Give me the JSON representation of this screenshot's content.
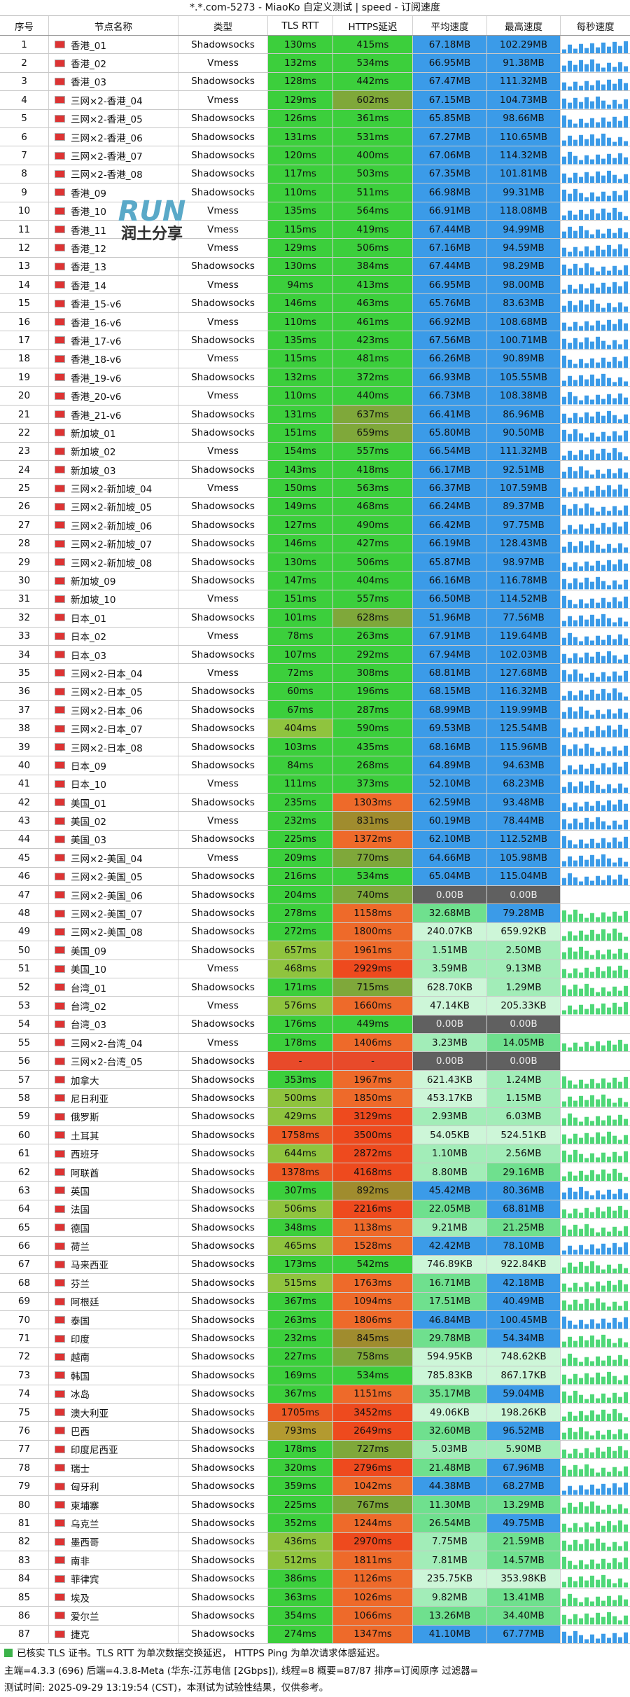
{
  "title": "*.*.com-5273 - MiaoKo 自定义测试 | speed - 订阅速度",
  "table": {
    "headers": [
      "序号",
      "节点名称",
      "类型",
      "TLS RTT",
      "HTTPS延迟",
      "平均速度",
      "最高速度",
      "每秒速度"
    ],
    "rows": [
      [
        "1",
        "香港_01",
        "Shadowsocks",
        "130ms",
        "415ms",
        "67.18MB",
        "102.29MB"
      ],
      [
        "2",
        "香港_02",
        "Vmess",
        "132ms",
        "534ms",
        "66.95MB",
        "91.38MB"
      ],
      [
        "3",
        "香港_03",
        "Shadowsocks",
        "128ms",
        "442ms",
        "67.47MB",
        "111.32MB"
      ],
      [
        "4",
        "三网×2-香港_04",
        "Vmess",
        "129ms",
        "602ms",
        "67.15MB",
        "104.73MB"
      ],
      [
        "5",
        "三网×2-香港_05",
        "Shadowsocks",
        "126ms",
        "361ms",
        "65.85MB",
        "98.66MB"
      ],
      [
        "6",
        "三网×2-香港_06",
        "Shadowsocks",
        "131ms",
        "531ms",
        "67.27MB",
        "110.65MB"
      ],
      [
        "7",
        "三网×2-香港_07",
        "Shadowsocks",
        "120ms",
        "400ms",
        "67.06MB",
        "114.32MB"
      ],
      [
        "8",
        "三网×2-香港_08",
        "Shadowsocks",
        "117ms",
        "503ms",
        "67.35MB",
        "101.81MB"
      ],
      [
        "9",
        "香港_09",
        "Shadowsocks",
        "110ms",
        "511ms",
        "66.98MB",
        "99.31MB"
      ],
      [
        "10",
        "香港_10",
        "Vmess",
        "135ms",
        "564ms",
        "66.91MB",
        "118.08MB"
      ],
      [
        "11",
        "香港_11",
        "Vmess",
        "115ms",
        "419ms",
        "67.44MB",
        "94.99MB"
      ],
      [
        "12",
        "香港_12",
        "Vmess",
        "129ms",
        "506ms",
        "67.16MB",
        "94.59MB"
      ],
      [
        "13",
        "香港_13",
        "Shadowsocks",
        "130ms",
        "384ms",
        "67.44MB",
        "98.29MB"
      ],
      [
        "14",
        "香港_14",
        "Vmess",
        "94ms",
        "413ms",
        "66.95MB",
        "98.00MB"
      ],
      [
        "15",
        "香港_15-v6",
        "Shadowsocks",
        "146ms",
        "463ms",
        "65.76MB",
        "83.63MB"
      ],
      [
        "16",
        "香港_16-v6",
        "Vmess",
        "110ms",
        "461ms",
        "66.92MB",
        "108.68MB"
      ],
      [
        "17",
        "香港_17-v6",
        "Shadowsocks",
        "135ms",
        "423ms",
        "67.56MB",
        "100.71MB"
      ],
      [
        "18",
        "香港_18-v6",
        "Vmess",
        "115ms",
        "481ms",
        "66.26MB",
        "90.89MB"
      ],
      [
        "19",
        "香港_19-v6",
        "Shadowsocks",
        "132ms",
        "372ms",
        "66.93MB",
        "105.55MB"
      ],
      [
        "20",
        "香港_20-v6",
        "Vmess",
        "110ms",
        "440ms",
        "66.73MB",
        "108.38MB"
      ],
      [
        "21",
        "香港_21-v6",
        "Shadowsocks",
        "131ms",
        "637ms",
        "66.41MB",
        "86.96MB"
      ],
      [
        "22",
        "新加坡_01",
        "Shadowsocks",
        "151ms",
        "659ms",
        "65.80MB",
        "90.50MB"
      ],
      [
        "23",
        "新加坡_02",
        "Vmess",
        "154ms",
        "557ms",
        "66.54MB",
        "111.32MB"
      ],
      [
        "24",
        "新加坡_03",
        "Shadowsocks",
        "143ms",
        "418ms",
        "66.17MB",
        "92.51MB"
      ],
      [
        "25",
        "三网×2-新加坡_04",
        "Vmess",
        "150ms",
        "563ms",
        "66.37MB",
        "107.59MB"
      ],
      [
        "26",
        "三网×2-新加坡_05",
        "Shadowsocks",
        "149ms",
        "468ms",
        "66.24MB",
        "89.37MB"
      ],
      [
        "27",
        "三网×2-新加坡_06",
        "Shadowsocks",
        "127ms",
        "490ms",
        "66.42MB",
        "97.75MB"
      ],
      [
        "28",
        "三网×2-新加坡_07",
        "Shadowsocks",
        "146ms",
        "427ms",
        "66.19MB",
        "128.43MB"
      ],
      [
        "29",
        "三网×2-新加坡_08",
        "Shadowsocks",
        "130ms",
        "506ms",
        "65.87MB",
        "98.97MB"
      ],
      [
        "30",
        "新加坡_09",
        "Shadowsocks",
        "147ms",
        "404ms",
        "66.16MB",
        "116.78MB"
      ],
      [
        "31",
        "新加坡_10",
        "Vmess",
        "151ms",
        "557ms",
        "66.50MB",
        "114.52MB"
      ],
      [
        "32",
        "日本_01",
        "Shadowsocks",
        "101ms",
        "628ms",
        "51.96MB",
        "77.56MB"
      ],
      [
        "33",
        "日本_02",
        "Vmess",
        "78ms",
        "263ms",
        "67.91MB",
        "119.64MB"
      ],
      [
        "34",
        "日本_03",
        "Shadowsocks",
        "107ms",
        "292ms",
        "67.94MB",
        "102.03MB"
      ],
      [
        "35",
        "三网×2-日本_04",
        "Vmess",
        "72ms",
        "308ms",
        "68.81MB",
        "127.68MB"
      ],
      [
        "36",
        "三网×2-日本_05",
        "Shadowsocks",
        "60ms",
        "196ms",
        "68.15MB",
        "116.32MB"
      ],
      [
        "37",
        "三网×2-日本_06",
        "Shadowsocks",
        "67ms",
        "287ms",
        "68.99MB",
        "119.99MB"
      ],
      [
        "38",
        "三网×2-日本_07",
        "Shadowsocks",
        "404ms",
        "590ms",
        "69.53MB",
        "125.54MB"
      ],
      [
        "39",
        "三网×2-日本_08",
        "Shadowsocks",
        "103ms",
        "435ms",
        "68.16MB",
        "115.96MB"
      ],
      [
        "40",
        "日本_09",
        "Shadowsocks",
        "84ms",
        "268ms",
        "64.89MB",
        "94.63MB"
      ],
      [
        "41",
        "日本_10",
        "Vmess",
        "111ms",
        "373ms",
        "52.10MB",
        "68.23MB"
      ],
      [
        "42",
        "美国_01",
        "Shadowsocks",
        "235ms",
        "1303ms",
        "62.59MB",
        "93.48MB"
      ],
      [
        "43",
        "美国_02",
        "Vmess",
        "232ms",
        "831ms",
        "60.19MB",
        "78.44MB"
      ],
      [
        "44",
        "美国_03",
        "Shadowsocks",
        "225ms",
        "1372ms",
        "62.10MB",
        "112.52MB"
      ],
      [
        "45",
        "三网×2-美国_04",
        "Vmess",
        "209ms",
        "770ms",
        "64.66MB",
        "105.98MB"
      ],
      [
        "46",
        "三网×2-美国_05",
        "Shadowsocks",
        "216ms",
        "534ms",
        "65.04MB",
        "115.04MB"
      ],
      [
        "47",
        "三网×2-美国_06",
        "Shadowsocks",
        "204ms",
        "740ms",
        "0.00B",
        "0.00B"
      ],
      [
        "48",
        "三网×2-美国_07",
        "Shadowsocks",
        "278ms",
        "1158ms",
        "32.68MB",
        "79.28MB"
      ],
      [
        "49",
        "三网×2-美国_08",
        "Shadowsocks",
        "272ms",
        "1800ms",
        "240.07KB",
        "659.92KB"
      ],
      [
        "50",
        "美国_09",
        "Shadowsocks",
        "657ms",
        "1961ms",
        "1.51MB",
        "2.50MB"
      ],
      [
        "51",
        "美国_10",
        "Vmess",
        "468ms",
        "2929ms",
        "3.59MB",
        "9.13MB"
      ],
      [
        "52",
        "台湾_01",
        "Shadowsocks",
        "171ms",
        "715ms",
        "628.70KB",
        "1.29MB"
      ],
      [
        "53",
        "台湾_02",
        "Vmess",
        "576ms",
        "1660ms",
        "47.14KB",
        "205.33KB"
      ],
      [
        "54",
        "台湾_03",
        "Shadowsocks",
        "176ms",
        "449ms",
        "0.00B",
        "0.00B"
      ],
      [
        "55",
        "三网×2-台湾_04",
        "Vmess",
        "178ms",
        "1406ms",
        "3.23MB",
        "14.05MB"
      ],
      [
        "56",
        "三网×2-台湾_05",
        "Shadowsocks",
        "-",
        "-",
        "0.00B",
        "0.00B"
      ],
      [
        "57",
        "加拿大",
        "Shadowsocks",
        "353ms",
        "1967ms",
        "621.43KB",
        "1.24MB"
      ],
      [
        "58",
        "尼日利亚",
        "Shadowsocks",
        "500ms",
        "1850ms",
        "453.17KB",
        "1.15MB"
      ],
      [
        "59",
        "俄罗斯",
        "Shadowsocks",
        "429ms",
        "3129ms",
        "2.93MB",
        "6.03MB"
      ],
      [
        "60",
        "土耳其",
        "Shadowsocks",
        "1758ms",
        "3500ms",
        "54.05KB",
        "524.51KB"
      ],
      [
        "61",
        "西班牙",
        "Shadowsocks",
        "644ms",
        "2872ms",
        "1.10MB",
        "2.56MB"
      ],
      [
        "62",
        "阿联酋",
        "Shadowsocks",
        "1378ms",
        "4168ms",
        "8.80MB",
        "29.16MB"
      ],
      [
        "63",
        "英国",
        "Shadowsocks",
        "307ms",
        "892ms",
        "45.42MB",
        "80.36MB"
      ],
      [
        "64",
        "法国",
        "Shadowsocks",
        "506ms",
        "2216ms",
        "22.05MB",
        "68.81MB"
      ],
      [
        "65",
        "德国",
        "Shadowsocks",
        "348ms",
        "1138ms",
        "9.21MB",
        "21.25MB"
      ],
      [
        "66",
        "荷兰",
        "Shadowsocks",
        "465ms",
        "1528ms",
        "42.42MB",
        "78.10MB"
      ],
      [
        "67",
        "马来西亚",
        "Shadowsocks",
        "173ms",
        "542ms",
        "746.89KB",
        "922.84KB"
      ],
      [
        "68",
        "芬兰",
        "Shadowsocks",
        "515ms",
        "1763ms",
        "16.71MB",
        "42.18MB"
      ],
      [
        "69",
        "阿根廷",
        "Shadowsocks",
        "367ms",
        "1094ms",
        "17.51MB",
        "40.49MB"
      ],
      [
        "70",
        "泰国",
        "Shadowsocks",
        "263ms",
        "1806ms",
        "46.84MB",
        "100.45MB"
      ],
      [
        "71",
        "印度",
        "Shadowsocks",
        "232ms",
        "845ms",
        "29.78MB",
        "54.34MB"
      ],
      [
        "72",
        "越南",
        "Shadowsocks",
        "227ms",
        "758ms",
        "594.95KB",
        "748.62KB"
      ],
      [
        "73",
        "韩国",
        "Shadowsocks",
        "169ms",
        "534ms",
        "785.83KB",
        "867.17KB"
      ],
      [
        "74",
        "冰岛",
        "Shadowsocks",
        "367ms",
        "1151ms",
        "35.17MB",
        "59.04MB"
      ],
      [
        "75",
        "澳大利亚",
        "Shadowsocks",
        "1705ms",
        "3452ms",
        "49.06KB",
        "198.26KB"
      ],
      [
        "76",
        "巴西",
        "Shadowsocks",
        "793ms",
        "2649ms",
        "32.60MB",
        "96.52MB"
      ],
      [
        "77",
        "印度尼西亚",
        "Shadowsocks",
        "178ms",
        "727ms",
        "5.03MB",
        "5.90MB"
      ],
      [
        "78",
        "瑞士",
        "Shadowsocks",
        "320ms",
        "2796ms",
        "21.48MB",
        "67.96MB"
      ],
      [
        "79",
        "匈牙利",
        "Shadowsocks",
        "359ms",
        "1042ms",
        "44.38MB",
        "68.27MB"
      ],
      [
        "80",
        "柬埔寨",
        "Shadowsocks",
        "225ms",
        "767ms",
        "11.30MB",
        "13.29MB"
      ],
      [
        "81",
        "乌克兰",
        "Shadowsocks",
        "352ms",
        "1244ms",
        "26.54MB",
        "49.75MB"
      ],
      [
        "82",
        "墨西哥",
        "Shadowsocks",
        "436ms",
        "2970ms",
        "7.75MB",
        "21.59MB"
      ],
      [
        "83",
        "南非",
        "Shadowsocks",
        "512ms",
        "1811ms",
        "7.81MB",
        "14.57MB"
      ],
      [
        "84",
        "菲律宾",
        "Shadowsocks",
        "386ms",
        "1126ms",
        "235.75KB",
        "353.98KB"
      ],
      [
        "85",
        "埃及",
        "Shadowsocks",
        "363ms",
        "1026ms",
        "9.82MB",
        "13.41MB"
      ],
      [
        "86",
        "爱尔兰",
        "Shadowsocks",
        "354ms",
        "1066ms",
        "13.26MB",
        "34.40MB"
      ],
      [
        "87",
        "捷克",
        "Shadowsocks",
        "274ms",
        "1347ms",
        "41.10MB",
        "67.77MB"
      ]
    ]
  },
  "watermark": {
    "brand": "RUN",
    "caption": "润土分享"
  },
  "footer": [
    "已核实 TLS 证书。TLS RTT 为单次数据交换延迟， HTTPS Ping 为单次请求体感延迟。",
    "主端=4.3.3 (696) 后端=4.3.8-Meta (华东-江苏电信 [2Gbps]), 线程=8 概要=87/87 排序=订阅原序 过滤器=",
    "测试时间:  2025-09-29 13:19:54 (CST)，本测试为试验性结果，仅供参考。"
  ]
}
